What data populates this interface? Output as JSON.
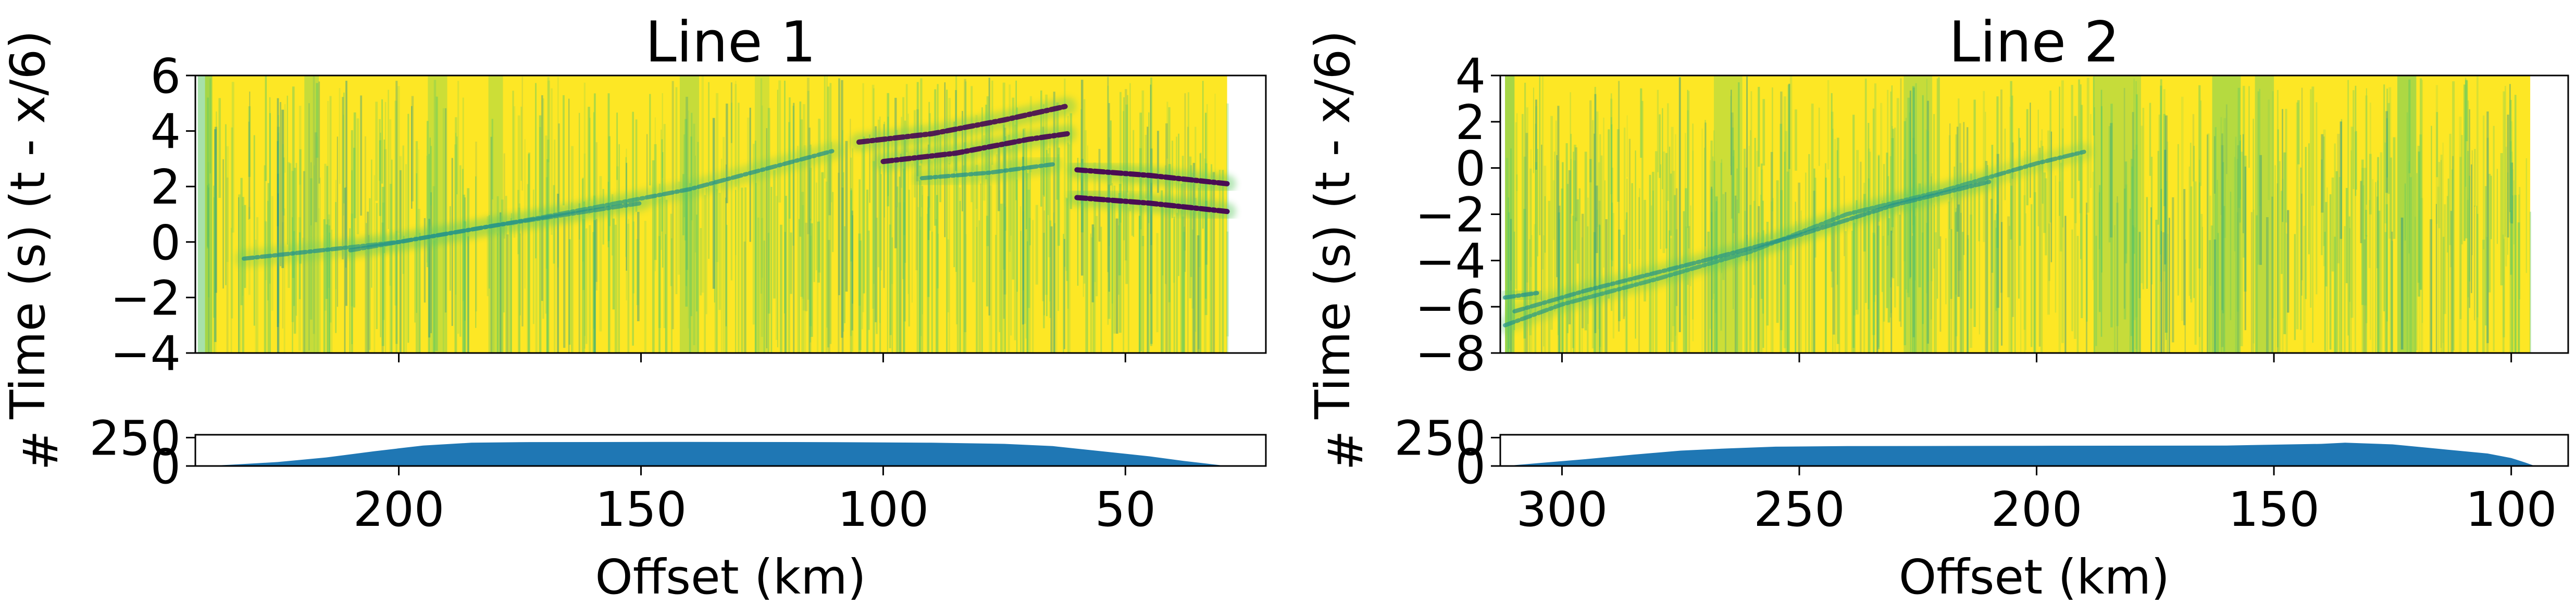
{
  "colors": {
    "accent_bar": "#1f77b4",
    "section_background": "#fde725",
    "section_green": "#5ec962",
    "section_teal": "#21918c",
    "section_dark": "#440154",
    "axes": "#000000"
  },
  "chart_data": [
    {
      "type": "heatmap",
      "title": "Line 1",
      "xlabel": "Offset (km)",
      "ylabel": "Time (s) (t - x/6)",
      "xlim": [
        242,
        21
      ],
      "ylim": [
        -4,
        6
      ],
      "x_ticks": [
        200,
        150,
        100,
        50
      ],
      "x_tick_labels": [
        "200",
        "150",
        "100",
        "50"
      ],
      "y_ticks": [
        -4,
        -2,
        0,
        2,
        4,
        6
      ],
      "y_tick_labels": [
        "−4",
        "−2",
        "0",
        "2",
        "4",
        "6"
      ],
      "colormap": "viridis",
      "data_extent_x": [
        240,
        29
      ],
      "arrivals": [
        {
          "points": [
            [
              232,
              -0.6
            ],
            [
              200,
              0.0
            ],
            [
              170,
              0.9
            ],
            [
              140,
              1.9
            ],
            [
              110,
              3.3
            ]
          ],
          "strength": 0.55
        },
        {
          "points": [
            [
              210,
              -0.3
            ],
            [
              180,
              0.6
            ],
            [
              150,
              1.4
            ]
          ],
          "strength": 0.4
        },
        {
          "points": [
            [
              105,
              3.6
            ],
            [
              90,
              3.9
            ],
            [
              75,
              4.4
            ],
            [
              62,
              4.9
            ]
          ],
          "strength": 0.85
        },
        {
          "points": [
            [
              100,
              2.9
            ],
            [
              85,
              3.2
            ],
            [
              70,
              3.7
            ],
            [
              62,
              3.9
            ]
          ],
          "strength": 0.9
        },
        {
          "points": [
            [
              92,
              2.3
            ],
            [
              78,
              2.5
            ],
            [
              65,
              2.8
            ]
          ],
          "strength": 0.6
        },
        {
          "points": [
            [
              60,
              2.6
            ],
            [
              45,
              2.4
            ],
            [
              29,
              2.1
            ]
          ],
          "strength": 1.0
        },
        {
          "points": [
            [
              60,
              1.6
            ],
            [
              45,
              1.4
            ],
            [
              29,
              1.1
            ]
          ],
          "strength": 1.0
        }
      ],
      "vertical_bands": [
        {
          "x": 240,
          "width": 3,
          "strength": 0.55
        },
        {
          "x": 218,
          "width": 3,
          "strength": 0.35
        },
        {
          "x": 192,
          "width": 4,
          "strength": 0.3
        },
        {
          "x": 180,
          "width": 3,
          "strength": 0.3
        },
        {
          "x": 140,
          "width": 4,
          "strength": 0.35
        },
        {
          "x": 125,
          "width": 3,
          "strength": 0.25
        }
      ],
      "histogram": {
        "ylabel": "#",
        "ylim": [
          0,
          275
        ],
        "y_ticks": [
          0,
          250
        ],
        "y_tick_labels": [
          "0",
          "250"
        ],
        "points": [
          [
            240,
            0
          ],
          [
            235,
            10
          ],
          [
            225,
            35
          ],
          [
            215,
            75
          ],
          [
            205,
            130
          ],
          [
            195,
            180
          ],
          [
            185,
            205
          ],
          [
            175,
            210
          ],
          [
            140,
            212
          ],
          [
            110,
            210
          ],
          [
            90,
            205
          ],
          [
            75,
            195
          ],
          [
            65,
            175
          ],
          [
            55,
            130
          ],
          [
            45,
            85
          ],
          [
            38,
            45
          ],
          [
            32,
            15
          ],
          [
            29,
            0
          ]
        ]
      }
    },
    {
      "type": "heatmap",
      "title": "Line 2",
      "xlabel": "Offset (km)",
      "ylabel": "Time (s) (t - x/6)",
      "xlim": [
        313,
        88
      ],
      "ylim": [
        -8,
        4
      ],
      "x_ticks": [
        300,
        250,
        200,
        150,
        100
      ],
      "x_tick_labels": [
        "300",
        "250",
        "200",
        "150",
        "100"
      ],
      "y_ticks": [
        -8,
        -6,
        -4,
        -2,
        0,
        2,
        4
      ],
      "y_tick_labels": [
        "−8",
        "−6",
        "−4",
        "−2",
        "0",
        "2",
        "4"
      ],
      "colormap": "viridis",
      "data_extent_x": [
        312,
        96
      ],
      "arrivals": [
        {
          "points": [
            [
              312,
              -6.8
            ],
            [
              300,
              -5.9
            ],
            [
              280,
              -4.8
            ],
            [
              260,
              -3.6
            ],
            [
              240,
              -2.0
            ],
            [
              220,
              -1.0
            ],
            [
              200,
              0.2
            ],
            [
              190,
              0.7
            ]
          ],
          "strength": 0.5
        },
        {
          "points": [
            [
              310,
              -6.2
            ],
            [
              295,
              -5.3
            ],
            [
              270,
              -4.0
            ],
            [
              250,
              -2.9
            ],
            [
              230,
              -1.6
            ],
            [
              210,
              -0.6
            ]
          ],
          "strength": 0.45
        },
        {
          "points": [
            [
              312,
              -5.6
            ],
            [
              305,
              -5.4
            ]
          ],
          "strength": 0.6
        }
      ],
      "vertical_bands": [
        {
          "x": 311,
          "width": 2,
          "strength": 0.55
        },
        {
          "x": 265,
          "width": 6,
          "strength": 0.3
        },
        {
          "x": 225,
          "width": 6,
          "strength": 0.35
        },
        {
          "x": 183,
          "width": 10,
          "strength": 0.35
        },
        {
          "x": 160,
          "width": 6,
          "strength": 0.45
        },
        {
          "x": 152,
          "width": 4,
          "strength": 0.4
        },
        {
          "x": 122,
          "width": 4,
          "strength": 0.5
        }
      ],
      "histogram": {
        "ylabel": "#",
        "ylim": [
          0,
          275
        ],
        "y_ticks": [
          0,
          250
        ],
        "y_tick_labels": [
          "0",
          "250"
        ],
        "points": [
          [
            312,
            0
          ],
          [
            305,
            25
          ],
          [
            295,
            60
          ],
          [
            285,
            100
          ],
          [
            275,
            135
          ],
          [
            265,
            155
          ],
          [
            255,
            170
          ],
          [
            240,
            175
          ],
          [
            200,
            178
          ],
          [
            160,
            180
          ],
          [
            140,
            195
          ],
          [
            135,
            205
          ],
          [
            125,
            190
          ],
          [
            115,
            150
          ],
          [
            105,
            110
          ],
          [
            100,
            70
          ],
          [
            97,
            30
          ],
          [
            95,
            0
          ]
        ]
      }
    }
  ]
}
